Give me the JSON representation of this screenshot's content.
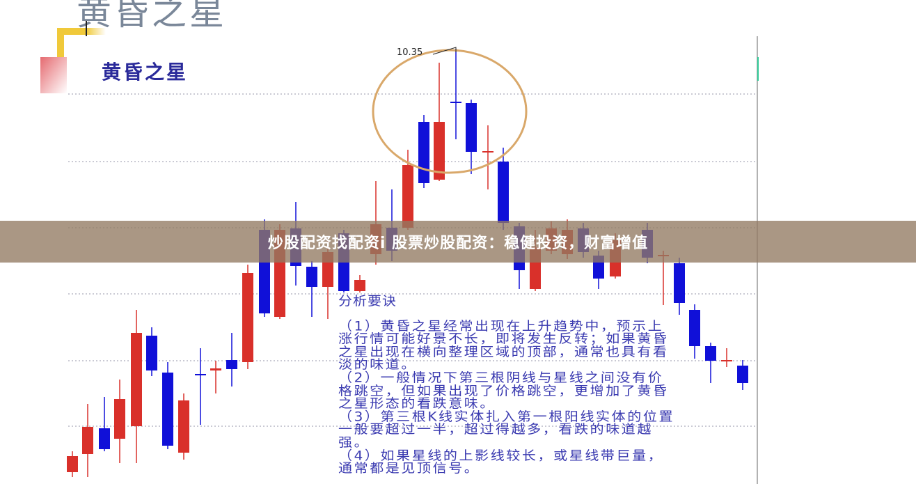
{
  "background_title": "黄昏之星",
  "card_title": "黄昏之星",
  "price_annotation": "10.35",
  "banner": "炒股配资找配资i 股票炒股配资：稳健投资，财富增值",
  "notes": {
    "heading": "分析要诀",
    "lines": [
      "（1）黄昏之星经常出现在上升趋势中，预示上",
      "涨行情可能好景不长，即将发生反转；如果黄昏",
      "之星出现在横向整理区域的顶部，通常也具有看",
      "淡的味道。",
      "（2）一般情况下第三根阴线与星线之间没有价",
      "格跳空，但如果出现了价格跳空，更增加了黄昏",
      "之星形态的看跌意味。",
      "（3）第三根K线实体扎入第一根阳线实体的位置",
      "一般要超过一半，超过得越多，看跌的味道越",
      "强。",
      "（4）如果星线的上影线较长，或星线带巨量，",
      "通常都是见顶信号。"
    ]
  },
  "colors": {
    "up": "#d9302a",
    "down": "#1010d8",
    "highlight_circle": "#d9a86a",
    "text": "#3a3ab0"
  }
}
